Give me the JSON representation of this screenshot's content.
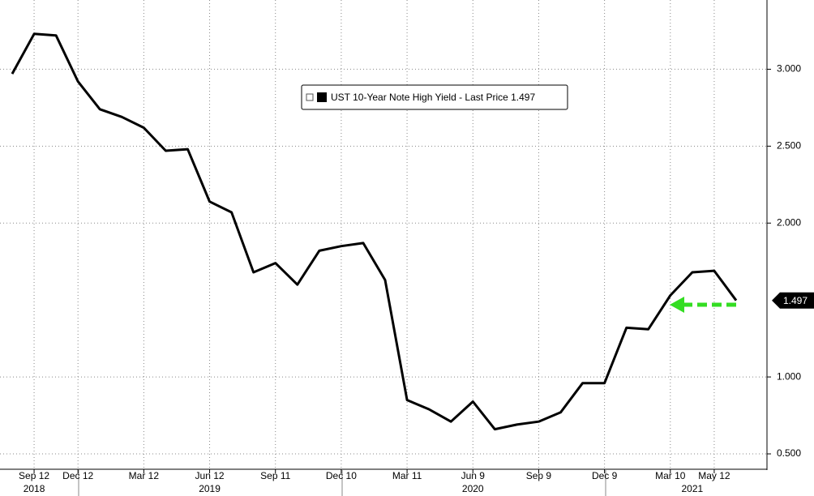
{
  "chart_data": {
    "type": "line",
    "categories": [
      null,
      "Sep 12",
      null,
      "Dec 12",
      null,
      null,
      "Mar 12",
      null,
      null,
      "Jun 12",
      null,
      null,
      "Sep 11",
      null,
      null,
      "Dec 10",
      null,
      null,
      "Mar 11",
      null,
      null,
      "Jun 9",
      null,
      null,
      "Sep 9",
      null,
      null,
      "Dec 9",
      null,
      null,
      "Mar 10",
      null,
      "May 12",
      null
    ],
    "years": [
      null,
      "2018",
      null,
      null,
      null,
      null,
      null,
      null,
      null,
      "2019",
      null,
      null,
      null,
      null,
      null,
      null,
      null,
      null,
      null,
      null,
      null,
      "2020",
      null,
      null,
      null,
      null,
      null,
      null,
      null,
      null,
      null,
      "2021",
      null,
      null
    ],
    "series": [
      {
        "name": "UST 10-Year Note High Yield - Last Price",
        "color": "#000000",
        "values": [
          2.97,
          3.23,
          3.22,
          2.92,
          2.74,
          2.69,
          2.62,
          2.47,
          2.48,
          2.14,
          2.07,
          1.68,
          1.74,
          1.6,
          1.82,
          1.85,
          1.87,
          1.63,
          0.85,
          0.79,
          0.71,
          0.84,
          0.66,
          0.69,
          0.71,
          0.77,
          0.96,
          0.96,
          1.32,
          1.31,
          1.53,
          1.68,
          1.69,
          1.497
        ]
      }
    ],
    "ylim": [
      0.4,
      3.45
    ],
    "yticks": [
      {
        "value": 0.5,
        "label": "0.500"
      },
      {
        "value": 1,
        "label": "1.000"
      },
      {
        "value": 2,
        "label": "2.000"
      },
      {
        "value": 2.5,
        "label": "2.500"
      },
      {
        "value": 3,
        "label": "3.000"
      }
    ],
    "grid": true
  }
}
